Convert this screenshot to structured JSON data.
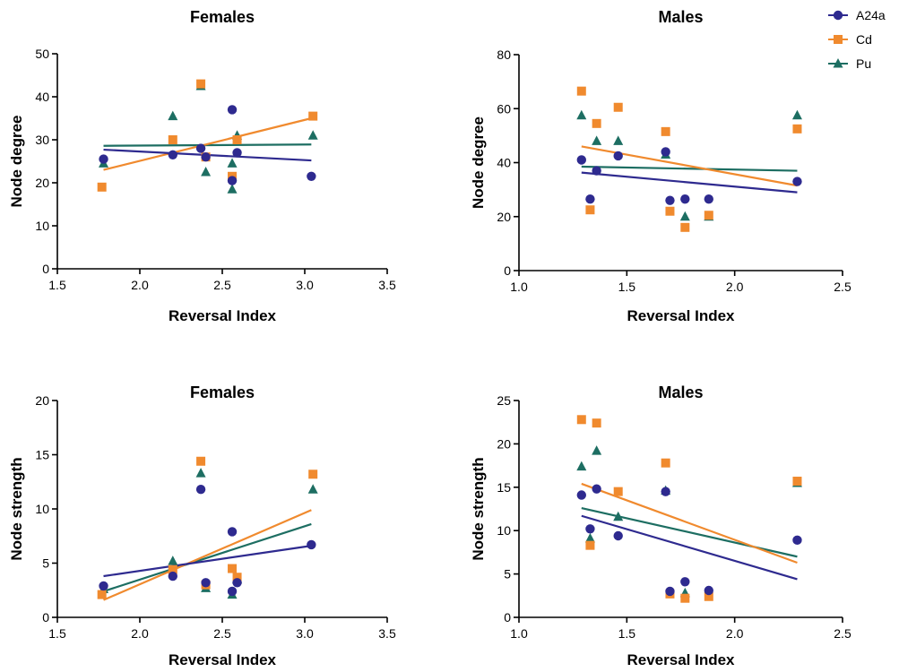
{
  "colors": {
    "A24a": "#2e2a8f",
    "Cd": "#f08a2e",
    "Pu": "#1d6e62"
  },
  "legend": [
    {
      "name": "A24a",
      "marker": "circle"
    },
    {
      "name": "Cd",
      "marker": "square"
    },
    {
      "name": "Pu",
      "marker": "triangle"
    }
  ],
  "chart_data": [
    {
      "type": "scatter",
      "title": "Females",
      "xlabel": "Reversal Index",
      "ylabel": "Node degree",
      "xlim": [
        1.5,
        3.5
      ],
      "ylim": [
        0,
        50
      ],
      "xticks": [
        1.5,
        2.0,
        2.5,
        3.0,
        3.5
      ],
      "yticks": [
        0,
        10,
        20,
        30,
        40,
        50
      ],
      "series": [
        {
          "name": "A24a",
          "points": [
            [
              1.78,
              25.5
            ],
            [
              2.2,
              26.5
            ],
            [
              2.37,
              28
            ],
            [
              2.4,
              26
            ],
            [
              2.56,
              37
            ],
            [
              2.56,
              20.5
            ],
            [
              2.59,
              27
            ],
            [
              3.04,
              21.5
            ]
          ],
          "fit": [
            [
              1.78,
              27.7
            ],
            [
              3.04,
              25.2
            ]
          ]
        },
        {
          "name": "Cd",
          "points": [
            [
              1.77,
              19
            ],
            [
              2.2,
              30
            ],
            [
              2.37,
              43
            ],
            [
              2.4,
              26
            ],
            [
              2.56,
              21.5
            ],
            [
              2.59,
              30
            ],
            [
              3.05,
              35.5
            ]
          ],
          "fit": [
            [
              1.78,
              23
            ],
            [
              3.04,
              35
            ]
          ]
        },
        {
          "name": "Pu",
          "points": [
            [
              1.78,
              24.5
            ],
            [
              2.2,
              35.5
            ],
            [
              2.37,
              42.5
            ],
            [
              2.4,
              22.5
            ],
            [
              2.56,
              24.5
            ],
            [
              2.56,
              18.5
            ],
            [
              2.59,
              31
            ],
            [
              3.05,
              31
            ]
          ],
          "fit": [
            [
              1.78,
              28.6
            ],
            [
              3.04,
              28.9
            ]
          ]
        }
      ]
    },
    {
      "type": "scatter",
      "title": "Males",
      "xlabel": "Reversal Index",
      "ylabel": "Node degree",
      "xlim": [
        1.0,
        2.5
      ],
      "ylim": [
        0,
        80
      ],
      "xticks": [
        1.0,
        1.5,
        2.0,
        2.5
      ],
      "yticks": [
        0,
        20,
        40,
        60,
        80
      ],
      "series": [
        {
          "name": "A24a",
          "points": [
            [
              1.29,
              41
            ],
            [
              1.33,
              26.5
            ],
            [
              1.36,
              37
            ],
            [
              1.46,
              42.5
            ],
            [
              1.68,
              44
            ],
            [
              1.7,
              26
            ],
            [
              1.77,
              26.5
            ],
            [
              1.88,
              26.5
            ],
            [
              2.29,
              33
            ]
          ],
          "fit": [
            [
              1.29,
              36.3
            ],
            [
              2.29,
              29
            ]
          ]
        },
        {
          "name": "Cd",
          "points": [
            [
              1.29,
              66.5
            ],
            [
              1.33,
              22.5
            ],
            [
              1.36,
              54.5
            ],
            [
              1.46,
              60.5
            ],
            [
              1.68,
              51.5
            ],
            [
              1.7,
              22
            ],
            [
              1.77,
              16
            ],
            [
              1.88,
              20.5
            ],
            [
              2.29,
              52.5
            ]
          ],
          "fit": [
            [
              1.29,
              46
            ],
            [
              2.29,
              31.5
            ]
          ]
        },
        {
          "name": "Pu",
          "points": [
            [
              1.29,
              57.5
            ],
            [
              1.36,
              48
            ],
            [
              1.46,
              48
            ],
            [
              1.68,
              43
            ],
            [
              1.77,
              20
            ],
            [
              1.88,
              20
            ],
            [
              2.29,
              57.5
            ]
          ],
          "fit": [
            [
              1.29,
              38.5
            ],
            [
              2.29,
              37
            ]
          ]
        }
      ]
    },
    {
      "type": "scatter",
      "title": "Females",
      "xlabel": "Reversal Index",
      "ylabel": "Node strength",
      "xlim": [
        1.5,
        3.5
      ],
      "ylim": [
        0,
        20
      ],
      "xticks": [
        1.5,
        2.0,
        2.5,
        3.0,
        3.5
      ],
      "yticks": [
        0,
        5,
        10,
        15,
        20
      ],
      "series": [
        {
          "name": "A24a",
          "points": [
            [
              1.78,
              2.9
            ],
            [
              2.2,
              3.8
            ],
            [
              2.37,
              11.8
            ],
            [
              2.4,
              3.2
            ],
            [
              2.56,
              7.9
            ],
            [
              2.56,
              2.4
            ],
            [
              2.59,
              3.2
            ],
            [
              3.04,
              6.7
            ]
          ],
          "fit": [
            [
              1.78,
              3.8
            ],
            [
              3.04,
              6.6
            ]
          ]
        },
        {
          "name": "Cd",
          "points": [
            [
              1.77,
              2.1
            ],
            [
              2.2,
              4.4
            ],
            [
              2.37,
              14.4
            ],
            [
              2.4,
              3.0
            ],
            [
              2.56,
              4.5
            ],
            [
              2.59,
              3.7
            ],
            [
              3.05,
              13.2
            ]
          ],
          "fit": [
            [
              1.78,
              1.6
            ],
            [
              3.04,
              9.9
            ]
          ]
        },
        {
          "name": "Pu",
          "points": [
            [
              1.78,
              2.6
            ],
            [
              2.2,
              5.2
            ],
            [
              2.37,
              13.3
            ],
            [
              2.4,
              2.7
            ],
            [
              2.56,
              2.1
            ],
            [
              2.59,
              3.5
            ],
            [
              3.05,
              11.8
            ]
          ],
          "fit": [
            [
              1.78,
              2.4
            ],
            [
              3.04,
              8.6
            ]
          ]
        }
      ]
    },
    {
      "type": "scatter",
      "title": "Males",
      "xlabel": "Reversal Index",
      "ylabel": "Node strength",
      "xlim": [
        1.0,
        2.5
      ],
      "ylim": [
        0,
        25
      ],
      "xticks": [
        1.0,
        1.5,
        2.0,
        2.5
      ],
      "yticks": [
        0,
        5,
        10,
        15,
        20,
        25
      ],
      "series": [
        {
          "name": "A24a",
          "points": [
            [
              1.29,
              14.1
            ],
            [
              1.33,
              10.2
            ],
            [
              1.36,
              14.8
            ],
            [
              1.46,
              9.4
            ],
            [
              1.68,
              14.5
            ],
            [
              1.7,
              3.0
            ],
            [
              1.77,
              4.1
            ],
            [
              1.88,
              3.1
            ],
            [
              2.29,
              8.9
            ]
          ],
          "fit": [
            [
              1.29,
              11.7
            ],
            [
              2.29,
              4.4
            ]
          ]
        },
        {
          "name": "Cd",
          "points": [
            [
              1.29,
              22.8
            ],
            [
              1.33,
              8.3
            ],
            [
              1.36,
              22.4
            ],
            [
              1.46,
              14.5
            ],
            [
              1.68,
              17.8
            ],
            [
              1.7,
              2.7
            ],
            [
              1.77,
              2.2
            ],
            [
              1.88,
              2.4
            ],
            [
              2.29,
              15.7
            ]
          ],
          "fit": [
            [
              1.29,
              15.4
            ],
            [
              2.29,
              6.3
            ]
          ]
        },
        {
          "name": "Pu",
          "points": [
            [
              1.29,
              17.4
            ],
            [
              1.33,
              9.1
            ],
            [
              1.36,
              19.2
            ],
            [
              1.46,
              11.6
            ],
            [
              1.68,
              14.6
            ],
            [
              1.77,
              2.8
            ],
            [
              2.29,
              15.5
            ]
          ],
          "fit": [
            [
              1.29,
              12.6
            ],
            [
              2.29,
              7.0
            ]
          ]
        }
      ]
    }
  ]
}
